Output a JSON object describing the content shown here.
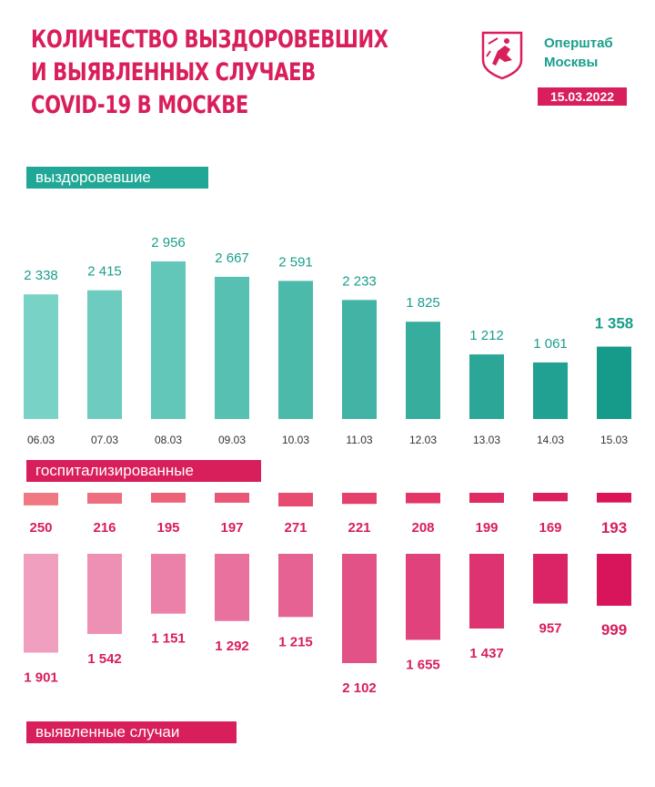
{
  "header": {
    "title_lines": [
      "КОЛИЧЕСТВО ВЫЗДОРОВЕВШИХ",
      "И ВЫЯВЛЕННЫХ СЛУЧАЕВ",
      "COVID-19 В МОСКВЕ"
    ],
    "org_lines": [
      "Оперштаб",
      "Москвы"
    ],
    "date": "15.03.2022",
    "logo_icon": "moscow-coat-of-arms-icon"
  },
  "labels": {
    "recovered": "выздоровевшие",
    "hospitalized": "госпитализированные",
    "detected": "выявленные случаи"
  },
  "colors": {
    "teal": "#21a795",
    "pink": "#d81e5b"
  },
  "chart_data": {
    "type": "bar",
    "categories": [
      "06.03",
      "07.03",
      "08.03",
      "09.03",
      "10.03",
      "11.03",
      "12.03",
      "13.03",
      "14.03",
      "15.03"
    ],
    "series": [
      {
        "name": "выздоровевшие",
        "values": [
          2338,
          2415,
          2956,
          2667,
          2591,
          2233,
          1825,
          1212,
          1061,
          1358
        ],
        "labels": [
          "2 338",
          "2 415",
          "2 956",
          "2 667",
          "2 591",
          "2 233",
          "1 825",
          "1 212",
          "1 061",
          "1 358"
        ]
      },
      {
        "name": "госпитализированные",
        "values": [
          250,
          216,
          195,
          197,
          271,
          221,
          208,
          199,
          169,
          193
        ],
        "labels": [
          "250",
          "216",
          "195",
          "197",
          "271",
          "221",
          "208",
          "199",
          "169",
          "193"
        ]
      },
      {
        "name": "выявленные случаи",
        "values": [
          1901,
          1542,
          1151,
          1292,
          1215,
          2102,
          1655,
          1437,
          957,
          999
        ],
        "labels": [
          "1 901",
          "1 542",
          "1 151",
          "1 292",
          "1 215",
          "2 102",
          "1 655",
          "1 437",
          "957",
          "999"
        ]
      }
    ]
  }
}
